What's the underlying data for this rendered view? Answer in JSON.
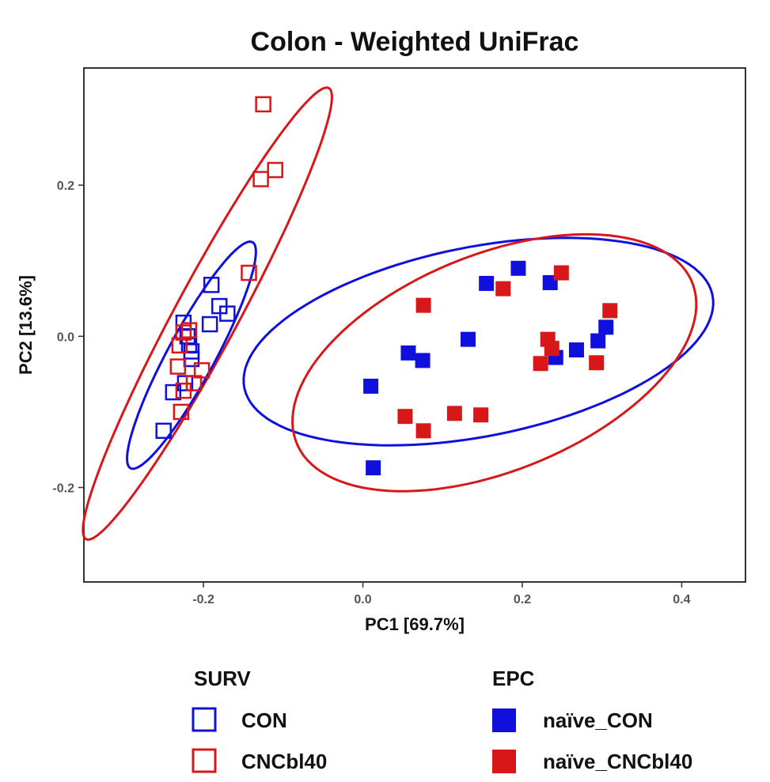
{
  "chart_data": {
    "type": "scatter",
    "title": "Colon - Weighted UniFrac",
    "xlabel": "PC1  [69.7%]",
    "ylabel": "PC2  [13.6%]",
    "xlim": [
      -0.35,
      0.48
    ],
    "ylim": [
      -0.325,
      0.355
    ],
    "x_ticks": [
      -0.2,
      0.0,
      0.2,
      0.4
    ],
    "x_tick_labels": [
      "-0.2",
      "0.0",
      "0.2",
      "0.4"
    ],
    "y_ticks": [
      -0.2,
      0.0,
      0.2
    ],
    "y_tick_labels": [
      "-0.2",
      "0.0",
      "0.2"
    ],
    "grid": false,
    "legend_position": "bottom",
    "colors": {
      "CON": "#1010dd",
      "CNCbl40": "#d81818"
    },
    "legends": [
      {
        "title": "SURV",
        "entries": [
          {
            "label": "CON",
            "color": "#1010dd",
            "fill": false
          },
          {
            "label": "CNCbl40",
            "color": "#d81818",
            "fill": false
          }
        ]
      },
      {
        "title": "EPC",
        "entries": [
          {
            "label": "naïve_CON",
            "color": "#1010dd",
            "fill": true
          },
          {
            "label": "naïve_CNCbl40",
            "color": "#d81818",
            "fill": true
          }
        ]
      }
    ],
    "series": [
      {
        "name": "CON",
        "group": "SURV",
        "color": "#1010dd",
        "fill": false,
        "points": [
          [
            -0.225,
            0.018
          ],
          [
            -0.22,
            0.0
          ],
          [
            -0.218,
            -0.012
          ],
          [
            -0.215,
            -0.02
          ],
          [
            -0.215,
            -0.03
          ],
          [
            -0.19,
            0.068
          ],
          [
            -0.18,
            0.04
          ],
          [
            -0.17,
            0.03
          ],
          [
            -0.192,
            0.016
          ],
          [
            -0.238,
            -0.074
          ],
          [
            -0.223,
            -0.062
          ],
          [
            -0.25,
            -0.125
          ]
        ]
      },
      {
        "name": "CNCbl40",
        "group": "SURV",
        "color": "#d81818",
        "fill": false,
        "points": [
          [
            -0.125,
            0.307
          ],
          [
            -0.11,
            0.22
          ],
          [
            -0.128,
            0.208
          ],
          [
            -0.143,
            0.084
          ],
          [
            -0.225,
            0.005
          ],
          [
            -0.218,
            0.008
          ],
          [
            -0.23,
            -0.012
          ],
          [
            -0.232,
            -0.04
          ],
          [
            -0.202,
            -0.045
          ],
          [
            -0.212,
            -0.062
          ],
          [
            -0.228,
            -0.1
          ],
          [
            -0.225,
            -0.072
          ]
        ]
      },
      {
        "name": "naïve_CON",
        "group": "EPC",
        "color": "#1010dd",
        "fill": true,
        "points": [
          [
            0.195,
            0.09
          ],
          [
            0.155,
            0.07
          ],
          [
            0.235,
            0.071
          ],
          [
            0.132,
            -0.004
          ],
          [
            0.057,
            -0.022
          ],
          [
            0.075,
            -0.032
          ],
          [
            0.01,
            -0.066
          ],
          [
            0.013,
            -0.174
          ],
          [
            0.242,
            -0.028
          ],
          [
            0.268,
            -0.018
          ],
          [
            0.295,
            -0.006
          ],
          [
            0.305,
            0.012
          ]
        ]
      },
      {
        "name": "naïve_CNCbl40",
        "group": "EPC",
        "color": "#d81818",
        "fill": true,
        "points": [
          [
            0.249,
            0.084
          ],
          [
            0.176,
            0.063
          ],
          [
            0.076,
            0.041
          ],
          [
            0.31,
            0.034
          ],
          [
            0.232,
            -0.004
          ],
          [
            0.237,
            -0.016
          ],
          [
            0.223,
            -0.036
          ],
          [
            0.293,
            -0.035
          ],
          [
            0.053,
            -0.106
          ],
          [
            0.115,
            -0.102
          ],
          [
            0.148,
            -0.104
          ],
          [
            0.076,
            -0.125
          ]
        ]
      }
    ],
    "ellipses": [
      {
        "series": "CNCbl40",
        "color": "#d81818",
        "center": [
          -0.195,
          0.03
        ],
        "rx": 0.335,
        "ry": 0.04,
        "angle_deg": 63
      },
      {
        "series": "CON",
        "color": "#1010dd",
        "center": [
          -0.215,
          -0.025
        ],
        "rx": 0.168,
        "ry": 0.03,
        "angle_deg": 63
      },
      {
        "series": "naïve_CON",
        "color": "#1010dd",
        "center": [
          0.145,
          -0.007
        ],
        "rx": 0.3,
        "ry": 0.125,
        "angle_deg": 12
      },
      {
        "series": "naïve_CNCbl40",
        "color": "#d81818",
        "center": [
          0.165,
          -0.035
        ],
        "rx": 0.27,
        "ry": 0.142,
        "angle_deg": 24
      }
    ]
  }
}
